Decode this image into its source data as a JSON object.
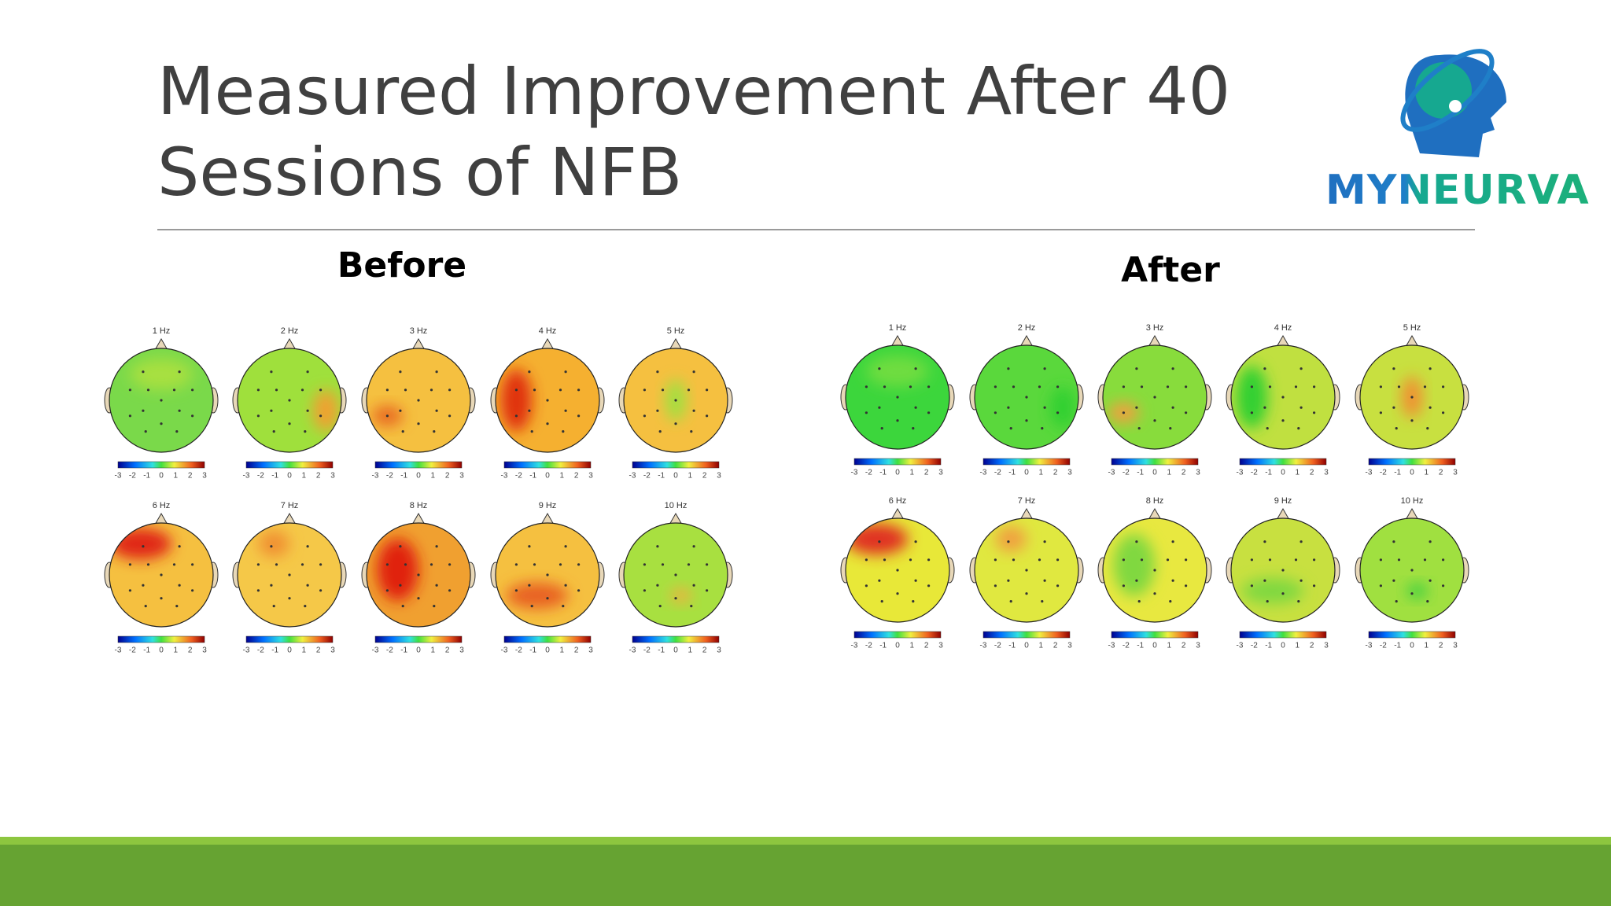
{
  "title_lines": [
    "Measured Improvement After 40",
    "Sessions of NFB"
  ],
  "logo": {
    "text": "MYNEURVA"
  },
  "colorbar_labels": [
    "-3",
    "-2",
    "-1",
    "0",
    "1",
    "2",
    "3"
  ],
  "panels": [
    {
      "label": "Before",
      "maps": [
        {
          "label": "1 Hz",
          "color": "#7ad94a",
          "accent": "#a8e040"
        },
        {
          "label": "2 Hz",
          "color": "#9fe03c",
          "accent": "#f0a030"
        },
        {
          "label": "3 Hz",
          "color": "#f5c040",
          "accent": "#e86a20"
        },
        {
          "label": "4 Hz",
          "color": "#f5b030",
          "accent": "#e03010"
        },
        {
          "label": "5 Hz",
          "color": "#f5c040",
          "accent": "#a0e040"
        },
        {
          "label": "6 Hz",
          "color": "#f5c040",
          "accent": "#e02818"
        },
        {
          "label": "7 Hz",
          "color": "#f5c848",
          "accent": "#f09030"
        },
        {
          "label": "8 Hz",
          "color": "#f0a030",
          "accent": "#e02010"
        },
        {
          "label": "9 Hz",
          "color": "#f5c040",
          "accent": "#e86020"
        },
        {
          "label": "10 Hz",
          "color": "#a8e040",
          "accent": "#f0b040"
        }
      ]
    },
    {
      "label": "After",
      "maps": [
        {
          "label": "1 Hz",
          "color": "#3cd63c",
          "accent": "#70dd40"
        },
        {
          "label": "2 Hz",
          "color": "#5ad83c",
          "accent": "#30d030"
        },
        {
          "label": "3 Hz",
          "color": "#88dc3c",
          "accent": "#f0a040"
        },
        {
          "label": "4 Hz",
          "color": "#c0e040",
          "accent": "#30d030"
        },
        {
          "label": "5 Hz",
          "color": "#c8e040",
          "accent": "#f09030"
        },
        {
          "label": "6 Hz",
          "color": "#e8e838",
          "accent": "#e03020"
        },
        {
          "label": "7 Hz",
          "color": "#e0e840",
          "accent": "#f0a040"
        },
        {
          "label": "8 Hz",
          "color": "#e8e840",
          "accent": "#80d840"
        },
        {
          "label": "9 Hz",
          "color": "#c8e040",
          "accent": "#80d840"
        },
        {
          "label": "10 Hz",
          "color": "#a0e040",
          "accent": "#40d040"
        }
      ]
    }
  ]
}
